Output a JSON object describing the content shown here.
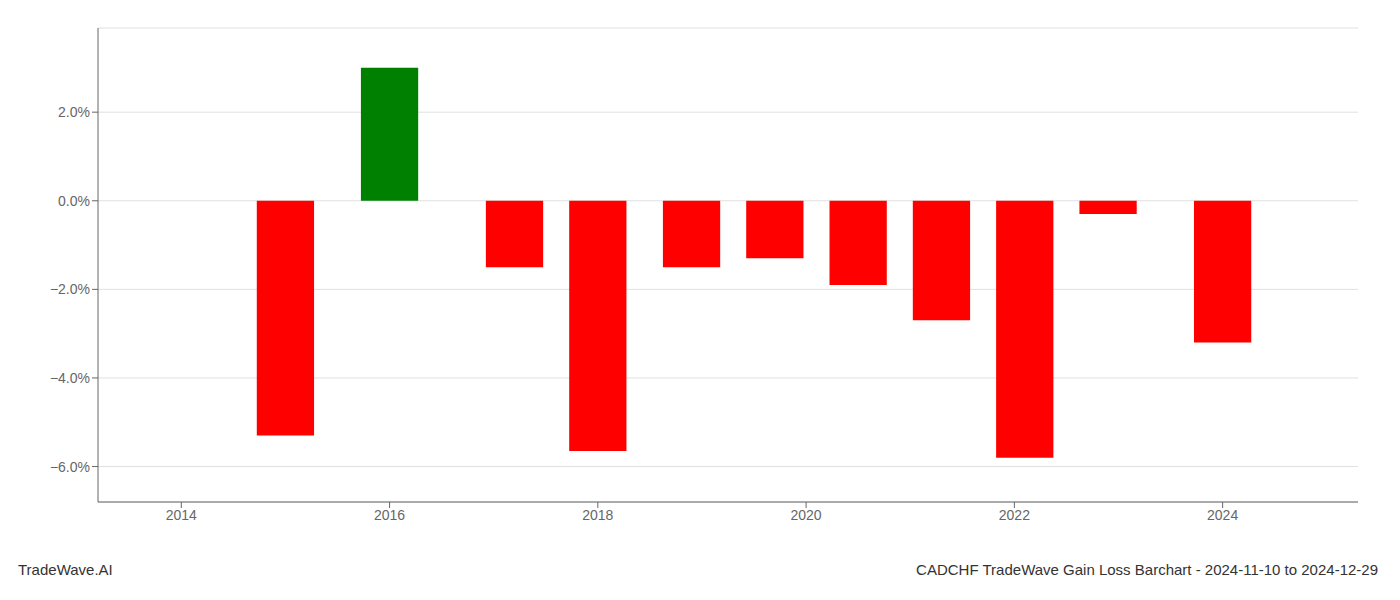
{
  "chart_data": {
    "type": "bar",
    "title": "CADCHF TradeWave Gain Loss Barchart - 2024-11-10 to 2024-12-29",
    "annotations": [
      "TradeWave.AI"
    ],
    "x": [
      2015.0,
      2016.0,
      2017.2,
      2018.0,
      2018.9,
      2019.7,
      2020.5,
      2021.3,
      2022.1,
      2022.9,
      2024.0
    ],
    "values": [
      -5.3,
      3.0,
      -1.5,
      -5.65,
      -1.5,
      -1.3,
      -1.9,
      -2.7,
      -5.8,
      -0.3,
      -3.2
    ],
    "colors": [
      "#ff0000",
      "#008000",
      "#ff0000",
      "#ff0000",
      "#ff0000",
      "#ff0000",
      "#ff0000",
      "#ff0000",
      "#ff0000",
      "#ff0000",
      "#ff0000"
    ],
    "xlim": [
      2013.2,
      2025.3
    ],
    "xticks": [
      2014,
      2016,
      2018,
      2020,
      2022,
      2024
    ],
    "ylim": [
      -6.8,
      3.9
    ],
    "yticks": [
      {
        "value": -6.0,
        "label": "−6.0%"
      },
      {
        "value": -4.0,
        "label": "−4.0%"
      },
      {
        "value": -2.0,
        "label": "−2.0%"
      },
      {
        "value": 0.0,
        "label": "0.0%"
      },
      {
        "value": 2.0,
        "label": "2.0%"
      }
    ],
    "grid": true
  }
}
